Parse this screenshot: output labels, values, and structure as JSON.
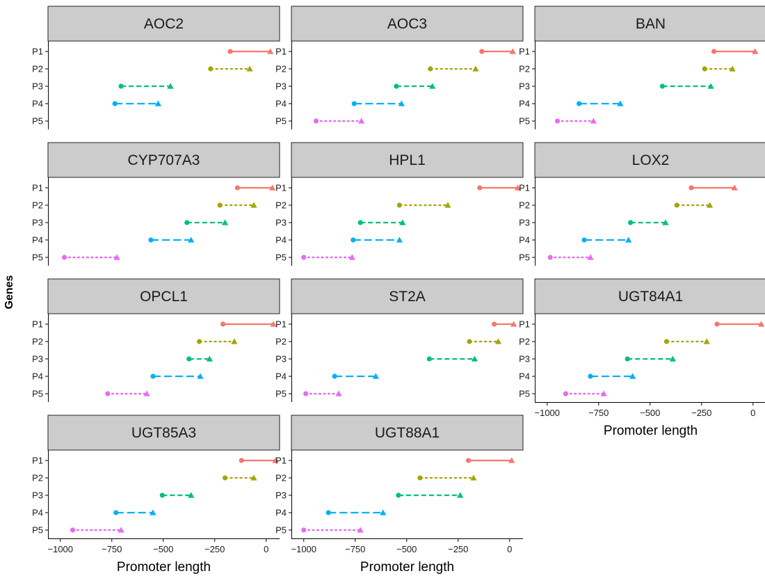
{
  "chart_data": {
    "type": "dumbbell-facet",
    "ylabel": "Genes",
    "xlabel": "Promoter length",
    "xlim": [
      -1060,
      65
    ],
    "x_ticks": [
      -1000,
      -750,
      -500,
      -250,
      0
    ],
    "x_tick_labels": [
      "−1000",
      "−750",
      "−500",
      "−250",
      "0"
    ],
    "series_order": [
      "P1",
      "P2",
      "P3",
      "P4",
      "P5"
    ],
    "series_colors": {
      "P1": "#F8766D",
      "P2": "#A3A500",
      "P3": "#00BF7D",
      "P4": "#00B0F6",
      "P5": "#E76BF3"
    },
    "series_linetypes": {
      "P1": "solid",
      "P2": "dashed-short",
      "P3": "dashed",
      "P4": "dashed-long",
      "P5": "dotted"
    },
    "start_marker": "circle",
    "end_marker": "triangle",
    "panels": [
      {
        "gene": "AOC2",
        "segments": {
          "P1": [
            -175,
            20
          ],
          "P2": [
            -270,
            -80
          ],
          "P3": [
            -705,
            -465
          ],
          "P4": [
            -735,
            -525
          ],
          "P5": []
        }
      },
      {
        "gene": "AOC3",
        "segments": {
          "P1": [
            -135,
            15
          ],
          "P2": [
            -385,
            -165
          ],
          "P3": [
            -550,
            -375
          ],
          "P4": [
            -755,
            -525
          ],
          "P5": [
            -940,
            -720
          ]
        }
      },
      {
        "gene": "BAN",
        "segments": {
          "P1": [
            -190,
            10
          ],
          "P2": [
            -235,
            -100
          ],
          "P3": [
            -440,
            -205
          ],
          "P4": [
            -845,
            -645
          ],
          "P5": [
            -950,
            -775
          ]
        }
      },
      {
        "gene": "CYP707A3",
        "segments": {
          "P1": [
            -140,
            30
          ],
          "P2": [
            -225,
            -60
          ],
          "P3": [
            -385,
            -200
          ],
          "P4": [
            -560,
            -365
          ],
          "P5": [
            -980,
            -725
          ]
        }
      },
      {
        "gene": "HPL1",
        "segments": {
          "P1": [
            -145,
            40
          ],
          "P2": [
            -535,
            -300
          ],
          "P3": [
            -725,
            -520
          ],
          "P4": [
            -760,
            -535
          ],
          "P5": [
            -1000,
            -765
          ]
        }
      },
      {
        "gene": "LOX2",
        "segments": {
          "P1": [
            -300,
            -90
          ],
          "P2": [
            -370,
            -210
          ],
          "P3": [
            -595,
            -425
          ],
          "P4": [
            -820,
            -605
          ],
          "P5": [
            -985,
            -790
          ]
        }
      },
      {
        "gene": "OPCL1",
        "segments": {
          "P1": [
            -210,
            35
          ],
          "P2": [
            -325,
            -155
          ],
          "P3": [
            -375,
            -275
          ],
          "P4": [
            -550,
            -320
          ],
          "P5": [
            -770,
            -580
          ]
        }
      },
      {
        "gene": "ST2A",
        "segments": {
          "P1": [
            -75,
            20
          ],
          "P2": [
            -195,
            -55
          ],
          "P3": [
            -390,
            -170
          ],
          "P4": [
            -850,
            -650
          ],
          "P5": [
            -990,
            -830
          ]
        }
      },
      {
        "gene": "UGT84A1",
        "segments": {
          "P1": [
            -175,
            40
          ],
          "P2": [
            -420,
            -225
          ],
          "P3": [
            -610,
            -390
          ],
          "P4": [
            -790,
            -585
          ],
          "P5": [
            -910,
            -725
          ]
        }
      },
      {
        "gene": "UGT85A3",
        "segments": {
          "P1": [
            -120,
            45
          ],
          "P2": [
            -200,
            -60
          ],
          "P3": [
            -505,
            -365
          ],
          "P4": [
            -730,
            -550
          ],
          "P5": [
            -940,
            -705
          ]
        }
      },
      {
        "gene": "UGT88A1",
        "segments": {
          "P1": [
            -200,
            10
          ],
          "P2": [
            -435,
            -175
          ],
          "P3": [
            -540,
            -240
          ],
          "P4": [
            -880,
            -615
          ],
          "P5": [
            -1000,
            -725
          ]
        }
      }
    ]
  }
}
